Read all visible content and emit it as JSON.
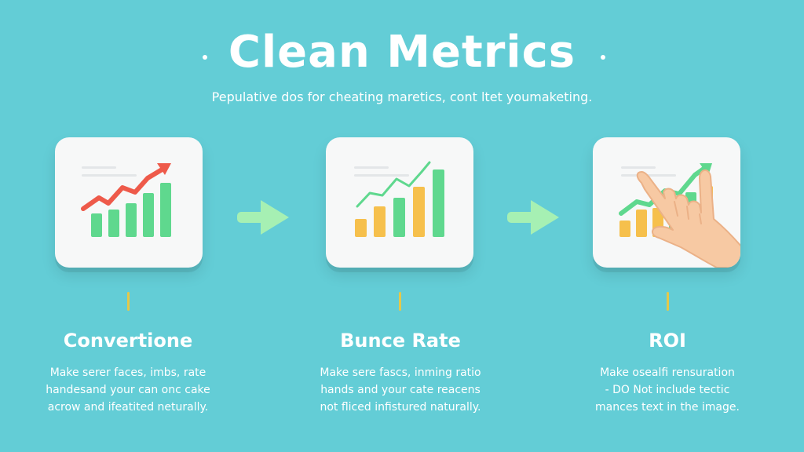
{
  "header": {
    "title": "Clean Metrics",
    "subtitle": "Pepulative dos for cheating maretics, cont ltet youmaketing."
  },
  "colors": {
    "background": "#63cdd6",
    "green": "#5fd88e",
    "red": "#ee5a4a",
    "yellow": "#f6c04c",
    "arrow": "#a6f0b3"
  },
  "steps": [
    {
      "title": "Convertione",
      "desc": [
        "Make serer faces, imbs, rate",
        "handesand your can onc cake",
        "acrow and ifeatited neturally."
      ],
      "icon": "rising-bar-chart-icon"
    },
    {
      "title": "Bunce Rate",
      "desc": [
        "Make sere fascs, inming ratio",
        "hands and your cate reacens",
        "not fliced infistured naturally."
      ],
      "icon": "bar-line-chart-icon"
    },
    {
      "title": "ROI",
      "desc": [
        "Make osealfi rensuration",
        "- DO Not include tectic",
        "mances text in the image."
      ],
      "icon": "hand-pointing-chart-icon"
    }
  ]
}
